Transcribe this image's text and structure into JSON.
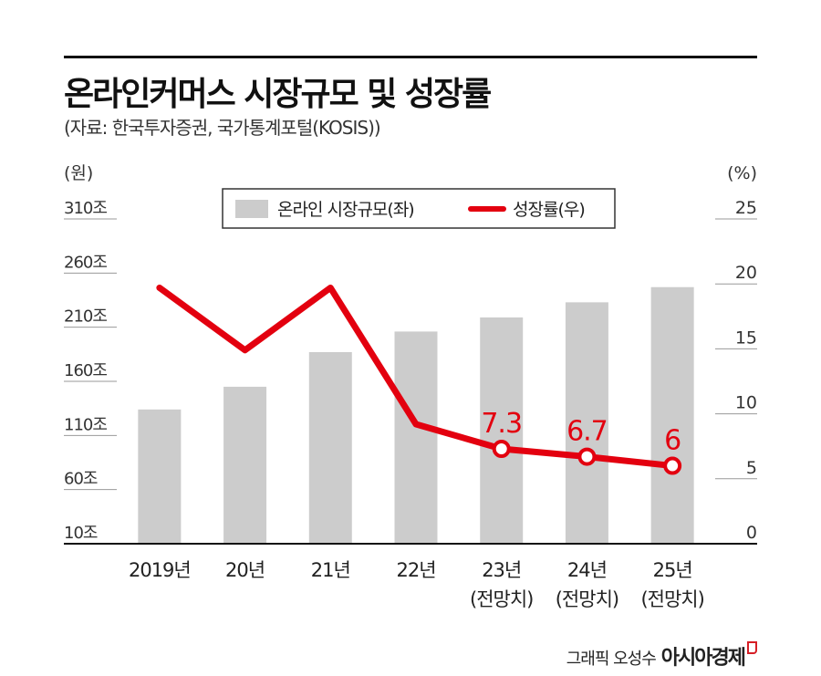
{
  "title": "온라인커머스 시장규모 및 성장률",
  "source": "(자료: 한국투자증권, 국가통계포털(KOSIS))",
  "credit": {
    "text": "그래픽 오성수",
    "brand": "아시아경제"
  },
  "colors": {
    "bar": "#cccccc",
    "line": "#e3000f",
    "axis": "#111111"
  },
  "chart_data": {
    "type": "bar+line",
    "categories": [
      "2019년",
      "20년",
      "21년",
      "22년",
      "23년\n(전망치)",
      "24년\n(전망치)",
      "25년\n(전망치)"
    ],
    "left_axis": {
      "unit": "(원)",
      "ticks": [
        "10조",
        "60조",
        "110조",
        "160조",
        "210조",
        "260조",
        "310조"
      ],
      "ylim": [
        10,
        310
      ]
    },
    "right_axis": {
      "unit": "(%)",
      "ticks": [
        "0",
        "5",
        "10",
        "15",
        "20",
        "25"
      ],
      "ylim": [
        0,
        25
      ]
    },
    "series": [
      {
        "name": "온라인 시장규모(좌)",
        "type": "bar",
        "axis": "left",
        "values": [
          134,
          155,
          187,
          206,
          219,
          233,
          247
        ]
      },
      {
        "name": "성장률(우)",
        "type": "line",
        "axis": "right",
        "values": [
          19.7,
          14.9,
          19.7,
          9.2,
          7.3,
          6.7,
          6
        ],
        "labels": [
          "",
          "",
          "",
          "",
          "7.3",
          "6.7",
          "6"
        ]
      }
    ],
    "legend": "top-center"
  }
}
